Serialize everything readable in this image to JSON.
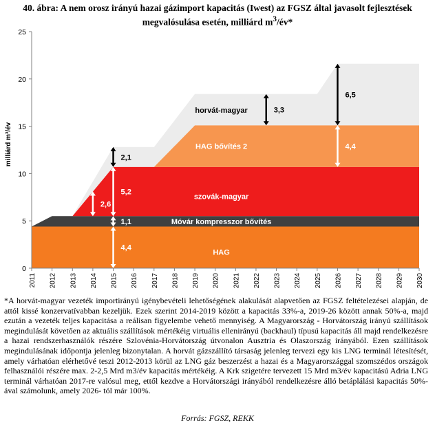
{
  "page": {
    "title_line1": "40. ábra: A nem orosz irányú hazai gázimport kapacitás (Iwest) az FGSZ által javasolt fejlesztések",
    "title_line2": "megvalósulása esetén, milliárd m",
    "title_sup": "3",
    "title_suffix": "/év*",
    "note": "*A horvát-magyar vezeték importirányú igénybevételi lehetőségének alakulását alapvetően az FGSZ feltételezései alapján, de attól kissé konzervatívabban kezeljük. Ezek szerint 2014-2019 között a kapacitás 33%-a, 2019-26 között annak 50%-a, majd ezután a vezeték teljes kapacitása a reálisan figyelembe vehető mennyiség. A Magyarország - Horvátország irányú szállítások megindulását követően az aktuális szállítások mértékéig virtuális ellenirányú (backhaul) típusú kapacitás áll majd rendelkezésre a hazai rendszerhasználók részére Szlovénia-Horvátország útvonalon Ausztria és Olaszország irányából. Ezen szállítások megindulásának időpontja jelenleg bizonytalan. A horvát gázszállító társaság jelenleg tervezi egy kis LNG terminál létesítését, amely várhatóan elérhetővé teszi 2012-2013 körül az LNG gáz beszerzést a hazai és a Magyarországgal szomszédos országok felhasználói részére max. 2-2,5 Mrd m3/év kapacitás mértékéig. A Krk szigetére tervezett 15 Mrd m3/év kapacitású Adria LNG terminál várhatóan 2017-re valósul meg, ettől kezdve a Horvátországi irányából rendelkezésre álló betáplálási kapacitás 50%-ával számolunk, amely 2026- tól már 100%.",
    "source": "Forrás: FGSZ, REKK"
  },
  "chart_data": {
    "type": "area",
    "stacked": true,
    "x": [
      2011,
      2012,
      2013,
      2014,
      2015,
      2016,
      2017,
      2018,
      2019,
      2020,
      2021,
      2022,
      2023,
      2024,
      2025,
      2026,
      2027,
      2028,
      2029,
      2030
    ],
    "x_tick_labels": [
      "2011",
      "2012",
      "2013",
      "2014",
      "2015",
      "2016",
      "2017",
      "2018",
      "2019",
      "2020",
      "2021",
      "2022",
      "2023",
      "2024",
      "2025",
      "2026",
      "2027",
      "2028",
      "2029",
      "2030"
    ],
    "ylabel": "milliárd m³/év",
    "ylim": [
      0,
      25
    ],
    "y_ticks": [
      0,
      5,
      10,
      15,
      20,
      25
    ],
    "grid": false,
    "series": [
      {
        "name": "HAG",
        "color": "#f47b20",
        "points": [
          [
            2011,
            4.4
          ],
          [
            2030,
            4.4
          ]
        ]
      },
      {
        "name": "Móvár kompresszor bővítés",
        "color": "#404040",
        "points": [
          [
            2011,
            0
          ],
          [
            2012,
            1.1
          ],
          [
            2030,
            1.1
          ]
        ]
      },
      {
        "name": "szovák-magyar",
        "color": "#ee1c1c",
        "points": [
          [
            2013,
            0
          ],
          [
            2015,
            5.2
          ],
          [
            2030,
            5.2
          ]
        ]
      },
      {
        "name": "HAG bővítés 2",
        "color": "#f7964f",
        "points": [
          [
            2017,
            0
          ],
          [
            2019,
            4.4
          ],
          [
            2030,
            4.4
          ]
        ]
      },
      {
        "name": "horvát-magyar",
        "color": "#ececec",
        "points": [
          [
            2013,
            0
          ],
          [
            2015,
            2.1
          ],
          [
            2017,
            2.1
          ],
          [
            2019,
            3.3
          ],
          [
            2025,
            3.3
          ],
          [
            2026,
            6.5
          ],
          [
            2030,
            6.5
          ]
        ]
      }
    ],
    "annotations": [
      {
        "text": "4,4",
        "x": 2015,
        "y_from": 0,
        "y_to": 4.4,
        "color": "#ffffff"
      },
      {
        "text": "1,1",
        "x": 2015,
        "y_from": 4.4,
        "y_to": 5.5,
        "color": "#ffffff"
      },
      {
        "text": "5,2",
        "x": 2015,
        "y_from": 5.5,
        "y_to": 10.7,
        "color": "#ffffff"
      },
      {
        "text": "2,6",
        "x": 2014,
        "y_from": 5.5,
        "y_to": 8.1,
        "color": "#ffffff"
      },
      {
        "text": "2,1",
        "x": 2015,
        "y_from": 10.7,
        "y_to": 12.8,
        "color": "#000000"
      },
      {
        "text": "3,3",
        "x": 2022.5,
        "y_from": 15.1,
        "y_to": 18.4,
        "color": "#000000"
      },
      {
        "text": "4,4",
        "x": 2026,
        "y_from": 10.7,
        "y_to": 15.1,
        "color": "#ffffff"
      },
      {
        "text": "6,5",
        "x": 2026,
        "y_from": 15.1,
        "y_to": 21.6,
        "color": "#000000"
      }
    ],
    "area_labels": [
      {
        "text": "HAG",
        "series": "HAG",
        "x": 2020.3,
        "y": 1.7,
        "color": "#ffffff",
        "weight": "bold"
      },
      {
        "text": "Móvár kompresszor bővítés",
        "series": "Móvár kompresszor bővítés",
        "x": 2020.3,
        "y": 4.95,
        "color": "#ffffff",
        "weight": "bold"
      },
      {
        "text": "szovák-magyar",
        "series": "szovák-magyar",
        "x": 2020.3,
        "y": 7.6,
        "color": "#ffffff",
        "weight": "bold"
      },
      {
        "text": "HAG bővítés 2",
        "series": "HAG bővítés 2",
        "x": 2020.3,
        "y": 12.9,
        "color": "#ffffff",
        "weight": "bold"
      },
      {
        "text": "horvát-magyar",
        "series": "horvát-magyar",
        "x": 2020.3,
        "y": 16.7,
        "color": "#000000",
        "weight": "bold"
      }
    ]
  }
}
